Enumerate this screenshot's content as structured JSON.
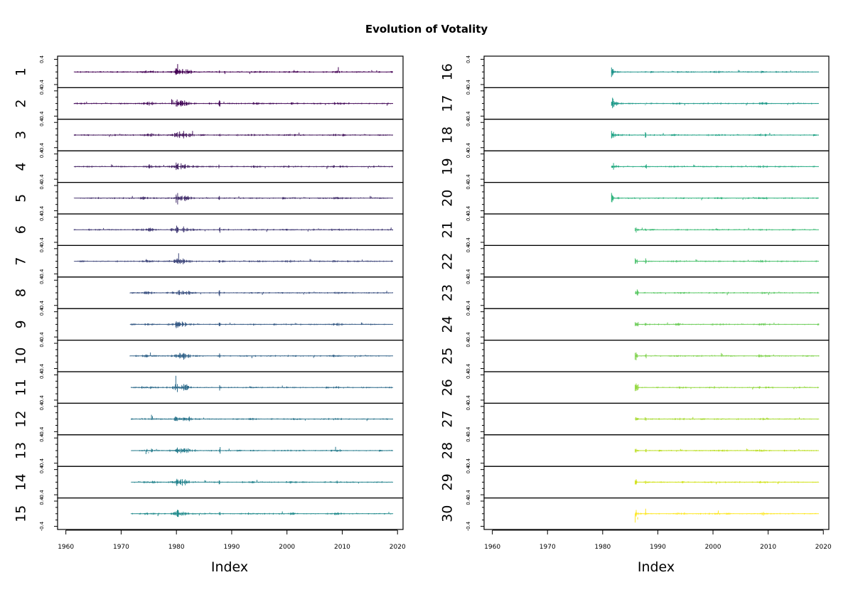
{
  "chart_data": {
    "type": "line",
    "title": "Evolution of Votality",
    "xlabel": "Index",
    "x_ticks": [
      "1960",
      "1970",
      "1980",
      "1990",
      "2000",
      "2010",
      "2020"
    ],
    "xlim": [
      1958.5,
      2021
    ],
    "ylim": [
      -0.5,
      0.5
    ],
    "y_ticks": [
      "0.4",
      "-0.4"
    ],
    "columns": [
      {
        "panels": [
          {
            "label": "1",
            "start": 1961.5,
            "end": 2019.2,
            "color": "#440154"
          },
          {
            "label": "2",
            "start": 1961.5,
            "end": 2019.2,
            "color": "#450B5A"
          },
          {
            "label": "3",
            "start": 1961.5,
            "end": 2019.2,
            "color": "#46185F"
          },
          {
            "label": "4",
            "start": 1961.5,
            "end": 2019.2,
            "color": "#472667"
          },
          {
            "label": "5",
            "start": 1961.5,
            "end": 2019.2,
            "color": "#46326E"
          },
          {
            "label": "6",
            "start": 1961.5,
            "end": 2019.2,
            "color": "#443D77"
          },
          {
            "label": "7",
            "start": 1961.5,
            "end": 2019.2,
            "color": "#40487C"
          },
          {
            "label": "8",
            "start": 1971.6,
            "end": 2019.2,
            "color": "#3C5282"
          },
          {
            "label": "9",
            "start": 1971.6,
            "end": 2019.2,
            "color": "#375B86"
          },
          {
            "label": "10",
            "start": 1971.6,
            "end": 2019.2,
            "color": "#33648A"
          },
          {
            "label": "11",
            "start": 1971.8,
            "end": 2019.2,
            "color": "#2F6C8C"
          },
          {
            "label": "12",
            "start": 1971.8,
            "end": 2019.2,
            "color": "#2B758D"
          },
          {
            "label": "13",
            "start": 1971.8,
            "end": 2019.2,
            "color": "#287D8E"
          },
          {
            "label": "14",
            "start": 1971.8,
            "end": 2019.2,
            "color": "#25848E"
          },
          {
            "label": "15",
            "start": 1971.8,
            "end": 2019.2,
            "color": "#228C8D"
          }
        ]
      },
      {
        "panels": [
          {
            "label": "16",
            "start": 1981.6,
            "end": 2019.2,
            "color": "#1F938B"
          },
          {
            "label": "17",
            "start": 1981.6,
            "end": 2019.2,
            "color": "#1F9A8A"
          },
          {
            "label": "18",
            "start": 1981.6,
            "end": 2019.2,
            "color": "#20A386"
          },
          {
            "label": "19",
            "start": 1981.6,
            "end": 2019.2,
            "color": "#25AB82"
          },
          {
            "label": "20",
            "start": 1981.6,
            "end": 2019.2,
            "color": "#2EB37C"
          },
          {
            "label": "21",
            "start": 1985.9,
            "end": 2019.2,
            "color": "#3CBB75"
          },
          {
            "label": "22",
            "start": 1985.9,
            "end": 2019.2,
            "color": "#4AC16D"
          },
          {
            "label": "23",
            "start": 1985.9,
            "end": 2019.2,
            "color": "#5AC864"
          },
          {
            "label": "24",
            "start": 1985.9,
            "end": 2019.2,
            "color": "#6DCD59"
          },
          {
            "label": "25",
            "start": 1985.9,
            "end": 2019.2,
            "color": "#80D34D"
          },
          {
            "label": "26",
            "start": 1985.9,
            "end": 2019.2,
            "color": "#94D840"
          },
          {
            "label": "27",
            "start": 1985.9,
            "end": 2019.2,
            "color": "#A8DB33"
          },
          {
            "label": "28",
            "start": 1985.9,
            "end": 2019.2,
            "color": "#BDDF26"
          },
          {
            "label": "29",
            "start": 1985.9,
            "end": 2019.2,
            "color": "#D2E21B"
          },
          {
            "label": "30",
            "start": 1985.9,
            "end": 2019.2,
            "color": "#FDE725"
          }
        ]
      }
    ]
  }
}
